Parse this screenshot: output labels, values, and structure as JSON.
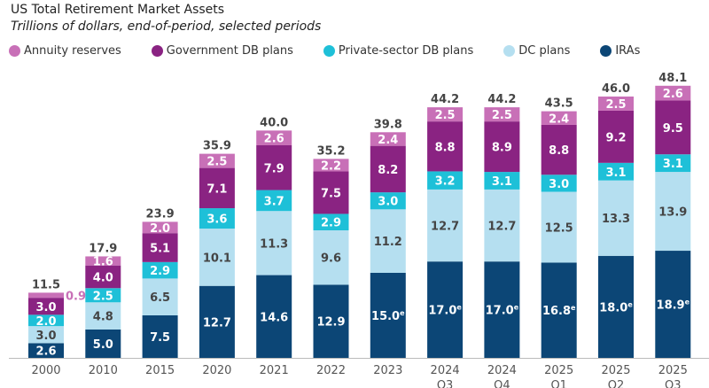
{
  "chart_data": {
    "type": "bar",
    "stacked": true,
    "title": "US Total Retirement Market Assets",
    "subtitle": "Trillions of dollars, end-of-period, selected periods",
    "legend_position": "top",
    "grid": false,
    "categories": [
      [
        "2000"
      ],
      [
        "2010"
      ],
      [
        "2015"
      ],
      [
        "2020"
      ],
      [
        "2021"
      ],
      [
        "2022"
      ],
      [
        "2023"
      ],
      [
        "2024",
        "Q3"
      ],
      [
        "2024",
        "Q4"
      ],
      [
        "2025",
        "Q1"
      ],
      [
        "2025",
        "Q2"
      ],
      [
        "2025",
        "Q3"
      ]
    ],
    "estimated_marker": "e",
    "series": [
      {
        "name": "IRAs",
        "color": "#0c4676",
        "values": [
          2.6,
          5.0,
          7.5,
          12.7,
          14.6,
          12.9,
          15.0,
          17.0,
          17.0,
          16.8,
          18.0,
          18.9
        ],
        "estimated": [
          false,
          false,
          false,
          false,
          false,
          false,
          true,
          true,
          true,
          true,
          true,
          true
        ]
      },
      {
        "name": "DC plans",
        "color": "#b5dff0",
        "values": [
          3.0,
          4.8,
          6.5,
          10.1,
          11.3,
          9.6,
          11.2,
          12.7,
          12.7,
          12.5,
          13.3,
          13.9
        ]
      },
      {
        "name": "Private-sector DB plans",
        "color": "#1ec0d8",
        "values": [
          2.0,
          2.5,
          2.9,
          3.6,
          3.7,
          2.9,
          3.0,
          3.2,
          3.1,
          3.0,
          3.1,
          3.1
        ]
      },
      {
        "name": "Government DB plans",
        "color": "#8a2382",
        "values": [
          3.0,
          4.0,
          5.1,
          7.1,
          7.9,
          7.5,
          8.2,
          8.8,
          8.9,
          8.8,
          9.2,
          9.5
        ]
      },
      {
        "name": "Annuity reserves",
        "color": "#c870b7",
        "values": [
          0.9,
          1.6,
          2.0,
          2.5,
          2.6,
          2.2,
          2.4,
          2.5,
          2.5,
          2.4,
          2.5,
          2.6
        ]
      }
    ],
    "totals": [
      "11.5",
      "17.9",
      "23.9",
      "35.9",
      "40.0",
      "35.2",
      "39.8",
      "44.2",
      "44.2",
      "43.5",
      "46.0",
      "48.1"
    ],
    "legend_order": [
      "Annuity reserves",
      "Government DB plans",
      "Private-sector DB plans",
      "DC plans",
      "IRAs"
    ]
  }
}
